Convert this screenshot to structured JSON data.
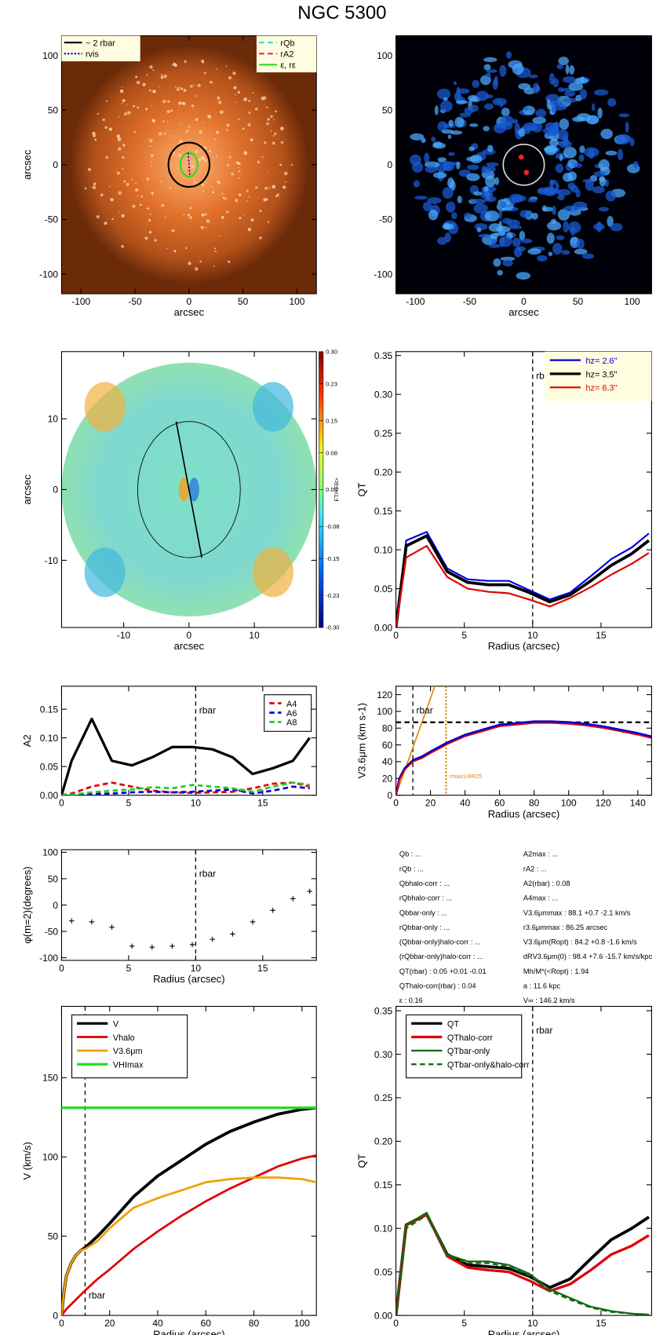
{
  "title": "NGC 5300",
  "chart_data": [
    {
      "type": "image",
      "palette": "orange",
      "xlim": [
        -118,
        118
      ],
      "ylim": [
        -118,
        118
      ],
      "xticks": [
        -100,
        -50,
        0,
        50,
        100
      ],
      "yticks": [
        -100,
        -50,
        0,
        50,
        100
      ],
      "xlabel": "arcsec",
      "ylabel": "arcsec",
      "legend_left": [
        {
          "text": "~ 2 rbar",
          "color": "#000000",
          "style": "solid"
        },
        {
          "text": "rvis",
          "color": "#0000cc",
          "style": "dotted"
        }
      ],
      "legend_right": [
        {
          "text": "rQb",
          "color": "#33dddd",
          "style": "dashed"
        },
        {
          "text": "rA2",
          "color": "#dd2288",
          "style": "dashed"
        },
        {
          "text": "ε, rε",
          "color": "#22dd22",
          "style": "solid"
        }
      ]
    },
    {
      "type": "image",
      "palette": "blue",
      "xlim": [
        -118,
        118
      ],
      "ylim": [
        -118,
        118
      ],
      "xticks": [
        -100,
        -50,
        0,
        50,
        100
      ],
      "yticks": [
        -100,
        -50,
        0,
        50,
        100
      ],
      "xlabel": "arcsec"
    },
    {
      "type": "image",
      "palette": "force",
      "xlim": [
        -19.5,
        19.5
      ],
      "ylim": [
        -19.5,
        19.5
      ],
      "xticks": [
        -10,
        0,
        10
      ],
      "yticks": [
        -10,
        0,
        10
      ],
      "xlabel": "arcsec",
      "ylabel": "arcsec",
      "colorbar_ticks": [
        {
          "value": 0.3,
          "label": "0.30"
        },
        {
          "value": 0.23,
          "label": "0.23"
        },
        {
          "value": 0.15,
          "label": "0.15"
        },
        {
          "value": 0.08,
          "label": "0.08"
        },
        {
          "value": 0,
          "label": "0.00"
        },
        {
          "value": -0.08,
          "label": "-0.08"
        },
        {
          "value": -0.15,
          "label": "-0.15"
        },
        {
          "value": -0.23,
          "label": "-0.23"
        },
        {
          "value": -0.3,
          "label": "-0.30"
        }
      ],
      "colorbar_lim": [
        -0.3,
        0.3
      ],
      "colorbar_label": "FT/<FR>"
    },
    {
      "type": "line",
      "xlabel": "Radius (arcsec)",
      "ylabel": "QT",
      "xlim": [
        0,
        18.7
      ],
      "ylim": [
        0,
        0.355
      ],
      "xticks": [
        0,
        5,
        10,
        15
      ],
      "yticks": [
        {
          "value": 0,
          "label": "0.00"
        },
        {
          "value": 0.05,
          "label": "0.05"
        },
        {
          "value": 0.1,
          "label": "0.10"
        },
        {
          "value": 0.15,
          "label": "0.15"
        },
        {
          "value": 0.2,
          "label": "0.20"
        },
        {
          "value": 0.25,
          "label": "0.25"
        },
        {
          "value": 0.3,
          "label": "0.30"
        },
        {
          "value": 0.35,
          "label": "0.35"
        }
      ],
      "vlines": [
        {
          "x": 10,
          "label": "rbar"
        }
      ],
      "legend": "upper right",
      "x": [
        0,
        0.75,
        2.25,
        3.75,
        5.25,
        6.75,
        8.25,
        9.75,
        11.25,
        12.75,
        14.25,
        15.75,
        17.25,
        18.5
      ],
      "series": [
        {
          "name": "hz=  2.6''",
          "color": "#0000dd",
          "style": "solid",
          "width": 2,
          "values": [
            0,
            0.112,
            0.123,
            0.076,
            0.062,
            0.06,
            0.06,
            0.048,
            0.036,
            0.045,
            0.066,
            0.088,
            0.103,
            0.121
          ]
        },
        {
          "name": "hz=  3.5''",
          "color": "#000000",
          "style": "solid",
          "width": 3.5,
          "values": [
            0,
            0.105,
            0.118,
            0.072,
            0.058,
            0.055,
            0.055,
            0.045,
            0.033,
            0.042,
            0.06,
            0.08,
            0.095,
            0.112
          ]
        },
        {
          "name": "hz=  6.3''",
          "color": "#dd0000",
          "style": "solid",
          "width": 2,
          "values": [
            0,
            0.09,
            0.105,
            0.065,
            0.05,
            0.046,
            0.044,
            0.036,
            0.027,
            0.038,
            0.052,
            0.068,
            0.082,
            0.096
          ]
        }
      ]
    },
    {
      "type": "line",
      "ylabel": "A2",
      "xlim": [
        0,
        19
      ],
      "ylim": [
        0,
        0.19
      ],
      "xticks": [
        0,
        5,
        10,
        15
      ],
      "yticks": [
        {
          "value": 0,
          "label": "0.00"
        },
        {
          "value": 0.05,
          "label": "0.05"
        },
        {
          "value": 0.1,
          "label": "0.10"
        },
        {
          "value": 0.15,
          "label": "0.15"
        }
      ],
      "vlines": [
        {
          "x": 10,
          "label": "rbar"
        }
      ],
      "legend": "upper right",
      "x": [
        0,
        0.75,
        2.25,
        3.75,
        5.25,
        6.75,
        8.25,
        9.75,
        11.25,
        12.75,
        14.25,
        15.75,
        17.25,
        18.5
      ],
      "series": [
        {
          "color": "#000000",
          "style": "solid",
          "width": 3,
          "values": [
            0,
            0.06,
            0.133,
            0.06,
            0.052,
            0.066,
            0.084,
            0.084,
            0.08,
            0.066,
            0.037,
            0.047,
            0.06,
            0.1
          ]
        },
        {
          "name": "A4",
          "color": "#dd0000",
          "style": "dashed",
          "width": 2.5,
          "values": [
            0,
            0.003,
            0.015,
            0.022,
            0.015,
            0.008,
            0.005,
            0.004,
            0.005,
            0.006,
            0.012,
            0.02,
            0.022,
            0.015
          ]
        },
        {
          "name": "A6",
          "color": "#0000dd",
          "style": "dashed",
          "width": 2.5,
          "values": [
            0,
            0,
            0.002,
            0.003,
            0.005,
            0.006,
            0.005,
            0.006,
            0.008,
            0.01,
            0.003,
            0.008,
            0.015,
            0.012
          ]
        },
        {
          "name": "A8",
          "color": "#22cc22",
          "style": "dashed",
          "width": 2.5,
          "values": [
            0,
            0.001,
            0.005,
            0.008,
            0.01,
            0.014,
            0.012,
            0.018,
            0.015,
            0.012,
            0.006,
            0.015,
            0.022,
            0.018
          ]
        }
      ]
    },
    {
      "type": "line",
      "xlabel": "Radius (arcsec)",
      "ylabel": "V3.6μm (km s-1)",
      "xlim": [
        0,
        148
      ],
      "ylim": [
        0,
        130
      ],
      "xticks": [
        0,
        20,
        40,
        60,
        80,
        100,
        120,
        140
      ],
      "yticks": [
        0,
        20,
        40,
        60,
        80,
        100,
        120
      ],
      "vlines": [
        {
          "x": 9.8,
          "label": "rbar"
        },
        {
          "x": 29,
          "label": "rmax1/4R25",
          "color": "#dd8800",
          "style": "dotted"
        }
      ],
      "hlines": [
        {
          "y": 87,
          "color": "#000000",
          "style": "dashed"
        }
      ],
      "x": [
        0,
        2,
        5,
        10,
        15,
        20,
        30,
        40,
        50,
        60,
        70,
        80,
        90,
        100,
        110,
        120,
        130,
        140,
        148
      ],
      "series": [
        {
          "color": "#dd8800",
          "style": "solid",
          "width": 1.5,
          "x": [
            0,
            22.5
          ],
          "values": [
            0,
            130
          ]
        },
        {
          "color": "#0000cc",
          "style": "solid",
          "width": 2.5,
          "values": [
            0,
            20,
            32,
            42,
            46,
            52,
            63,
            72,
            78,
            84,
            86,
            88,
            88,
            87,
            85,
            82,
            78,
            74,
            70
          ]
        },
        {
          "color": "#dd0000",
          "style": "solid",
          "width": 1.5,
          "values": [
            0,
            18,
            30,
            40,
            44,
            50,
            61,
            70,
            76,
            82,
            84,
            86,
            86,
            85,
            83,
            80,
            76,
            72,
            68
          ]
        }
      ]
    },
    {
      "type": "scatter",
      "xlabel": "Radius (arcsec)",
      "ylabel": "φ(m=2)(degrees)",
      "xlim": [
        0,
        19
      ],
      "ylim": [
        -105,
        105
      ],
      "xticks": [
        0,
        5,
        10,
        15
      ],
      "yticks": [
        -100,
        -50,
        0,
        50,
        100
      ],
      "vlines": [
        {
          "x": 10,
          "label": "rbar"
        }
      ],
      "x": [
        0.75,
        2.25,
        3.75,
        5.25,
        6.75,
        8.25,
        9.75,
        11.25,
        12.75,
        14.25,
        15.75,
        17.25,
        18.5
      ],
      "series": [
        {
          "color": "#000000",
          "values": [
            -30,
            -32,
            -42,
            -78,
            -80,
            -78,
            -75,
            -65,
            -55,
            -32,
            -10,
            12,
            26
          ]
        }
      ]
    },
    {
      "type": "line",
      "xlabel": "Radius (arcsec)",
      "ylabel": "V (km/s)",
      "xlim": [
        0,
        106
      ],
      "ylim": [
        0,
        195
      ],
      "xticks": [
        0,
        20,
        40,
        60,
        80,
        100
      ],
      "yticks": [
        0,
        50,
        100,
        150
      ],
      "vlines": [
        {
          "x": 9.8,
          "label": "rbar",
          "label_low": true
        }
      ],
      "legend": "upper left",
      "x": [
        0,
        1,
        2,
        4,
        6,
        8,
        10,
        15,
        20,
        30,
        40,
        50,
        60,
        70,
        80,
        90,
        100,
        106
      ],
      "series": [
        {
          "name": "V",
          "color": "#000000",
          "style": "solid",
          "width": 3.5,
          "values": [
            0,
            15,
            25,
            33,
            38,
            41,
            43,
            50,
            58,
            75,
            88,
            98,
            108,
            116,
            122,
            127,
            130,
            131
          ]
        },
        {
          "name": "Vhalo",
          "color": "#dd0000",
          "style": "solid",
          "width": 2.5,
          "values": [
            0,
            2,
            4,
            7,
            10,
            13,
            16,
            23,
            29,
            42,
            53,
            63,
            72,
            80,
            87,
            94,
            99,
            101
          ]
        },
        {
          "name": "V3.6μm",
          "color": "#f0a000",
          "style": "solid",
          "width": 2.5,
          "values": [
            0,
            15,
            25,
            33,
            38,
            41,
            42,
            47,
            55,
            68,
            74,
            79,
            84,
            86,
            87,
            87,
            86,
            84
          ]
        },
        {
          "name": "VHImax",
          "color": "#22dd22",
          "style": "solid",
          "width": 3,
          "x": [
            0,
            106
          ],
          "values": [
            131,
            131
          ]
        }
      ]
    },
    {
      "type": "line",
      "xlabel": "Radius (arcsec)",
      "ylabel": "QT",
      "xlim": [
        0,
        18.7
      ],
      "ylim": [
        0,
        0.355
      ],
      "xticks": [
        0,
        5,
        10,
        15
      ],
      "yticks": [
        {
          "value": 0,
          "label": "0.00"
        },
        {
          "value": 0.05,
          "label": "0.05"
        },
        {
          "value": 0.1,
          "label": "0.10"
        },
        {
          "value": 0.15,
          "label": "0.15"
        },
        {
          "value": 0.2,
          "label": "0.20"
        },
        {
          "value": 0.25,
          "label": "0.25"
        },
        {
          "value": 0.3,
          "label": "0.30"
        },
        {
          "value": 0.35,
          "label": "0.35"
        }
      ],
      "vlines": [
        {
          "x": 10,
          "label": "rbar"
        }
      ],
      "legend": "upper left",
      "x": [
        0,
        0.75,
        2.25,
        3.75,
        5.25,
        6.75,
        8.25,
        9.75,
        11.25,
        12.75,
        14.25,
        15.75,
        17.25,
        18.5
      ],
      "series": [
        {
          "name": "QT",
          "color": "#000000",
          "style": "solid",
          "width": 3.5,
          "values": [
            0,
            0.104,
            0.116,
            0.07,
            0.058,
            0.056,
            0.054,
            0.045,
            0.032,
            0.042,
            0.065,
            0.087,
            0.1,
            0.113
          ]
        },
        {
          "name": "QThalo-corr",
          "color": "#dd0000",
          "style": "solid",
          "width": 3,
          "values": [
            0,
            0.104,
            0.116,
            0.068,
            0.055,
            0.052,
            0.05,
            0.04,
            0.028,
            0.036,
            0.052,
            0.07,
            0.08,
            0.092
          ]
        },
        {
          "name": "QTbar-only",
          "color": "#116611",
          "style": "solid",
          "width": 2,
          "values": [
            0,
            0.104,
            0.118,
            0.07,
            0.062,
            0.062,
            0.058,
            0.048,
            0.03,
            0.02,
            0.01,
            0.005,
            0.002,
            0.001
          ]
        },
        {
          "name": "QTbar-only&halo-corr",
          "color": "#116611",
          "style": "dashed",
          "width": 2,
          "values": [
            0,
            0.1,
            0.115,
            0.068,
            0.06,
            0.06,
            0.056,
            0.046,
            0.028,
            0.018,
            0.009,
            0.004,
            0.002,
            0
          ]
        }
      ]
    }
  ],
  "parameters": {
    "left": [
      "Qb : ...",
      "rQb : ...",
      "Qbhalo-corr : ...",
      "rQbhalo-corr : ...",
      "Qbbar-only : ...",
      "rQbbar-only : ...",
      "(Qbbar-only)halo-corr : ...",
      "(rQbbar-only)halo-corr : ...",
      "QT(rbar) :  0.05 +0.01 -0.01",
      "QThalo-corr(rbar) :  0.04",
      "ε :  0.16"
    ],
    "right": [
      "A2max : ...",
      "rA2 : ...",
      "A2(rbar) :  0.08",
      "A4max : ...",
      "V3.6μmmax :  88.1 +0.7 -2.1 km/s",
      "r3.6μmmax :  86.25 arcsec",
      "V3.6μm(Ropt) :  84.2 +0.8 -1.6 km/s",
      "dRV3.6μm(0) :  98.4 +7.6 -15.7 km/s/kpc",
      "Mh/M*(<Ropt) :  1.94",
      "a :  11.6 kpc",
      "V∞ :  146.2 km/s"
    ]
  }
}
